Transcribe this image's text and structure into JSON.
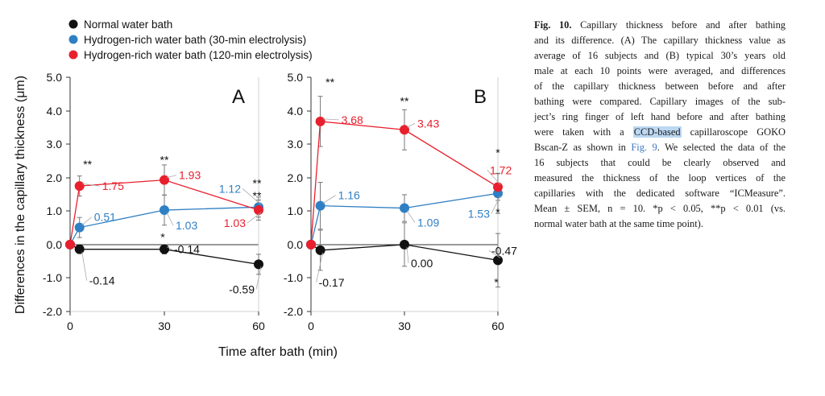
{
  "legend": {
    "items": [
      {
        "label": "Normal water bath",
        "color": "#111111"
      },
      {
        "label": "Hydrogen-rich water bath (30-min electrolysis)",
        "color": "#2f7fc4"
      },
      {
        "label": "Hydrogen-rich water bath (120-min electrolysis)",
        "color": "#e8202e"
      }
    ]
  },
  "chart_data": [
    {
      "type": "line",
      "panel_label": "A",
      "ylabel": "Differences in the capillary thickness (μm)",
      "xlabel": "Time after bath (min)",
      "ylim": [
        -2.0,
        5.0
      ],
      "xlim": [
        0,
        60
      ],
      "yticks": [
        "5.0",
        "4.0",
        "3.0",
        "2.0",
        "1.0",
        "0.0",
        "-1.0",
        "-2.0"
      ],
      "xticks": [
        "0",
        "30",
        "60"
      ],
      "grid": false,
      "series": [
        {
          "name": "Normal water bath",
          "color": "#111111",
          "points": [
            {
              "x": 0,
              "y": 0.0,
              "err": 0,
              "label": ""
            },
            {
              "x": 3,
              "y": -0.14,
              "err": 0.12,
              "label": "-0.14"
            },
            {
              "x": 30,
              "y": -0.14,
              "err": 0.14,
              "label": "-0.14",
              "sig": "*"
            },
            {
              "x": 60,
              "y": -0.59,
              "err": 0.3,
              "label": "-0.59"
            }
          ]
        },
        {
          "name": "Hydrogen-rich water bath (30-min electrolysis)",
          "color": "#2f7fc4",
          "points": [
            {
              "x": 0,
              "y": 0.0,
              "err": 0,
              "label": ""
            },
            {
              "x": 3,
              "y": 0.51,
              "err": 0.3,
              "label": "0.51"
            },
            {
              "x": 30,
              "y": 1.03,
              "err": 0.45,
              "label": "1.03"
            },
            {
              "x": 60,
              "y": 1.12,
              "err": 0.3,
              "label": "1.12",
              "sig": "**"
            }
          ]
        },
        {
          "name": "Hydrogen-rich water bath (120-min electrolysis)",
          "color": "#e8202e",
          "points": [
            {
              "x": 0,
              "y": 0.0,
              "err": 0,
              "label": ""
            },
            {
              "x": 3,
              "y": 1.75,
              "err": 0.3,
              "label": "1.75",
              "sig": "**"
            },
            {
              "x": 30,
              "y": 1.93,
              "err": 0.45,
              "label": "1.93",
              "sig": "**"
            },
            {
              "x": 60,
              "y": 1.03,
              "err": 0.3,
              "label": "1.03",
              "sig": "**"
            }
          ]
        }
      ]
    },
    {
      "type": "line",
      "panel_label": "B",
      "xlabel": "Time after bath (min)",
      "ylim": [
        -2.0,
        5.0
      ],
      "xlim": [
        0,
        60
      ],
      "yticks": [
        "5.0",
        "4.0",
        "3.0",
        "2.0",
        "1.0",
        "0.0",
        "-1.0",
        "-2.0"
      ],
      "xticks": [
        "0",
        "30",
        "60"
      ],
      "grid": false,
      "series": [
        {
          "name": "Normal water bath",
          "color": "#111111",
          "points": [
            {
              "x": 0,
              "y": 0.0,
              "err": 0,
              "label": ""
            },
            {
              "x": 3,
              "y": -0.17,
              "err": 0.6,
              "label": "-0.17"
            },
            {
              "x": 30,
              "y": 0.0,
              "err": 0.65,
              "label": "0.00"
            },
            {
              "x": 60,
              "y": -0.47,
              "err": 0.8,
              "label": "-0.47",
              "sig": "*"
            }
          ]
        },
        {
          "name": "Hydrogen-rich water bath (30-min electrolysis)",
          "color": "#2f7fc4",
          "points": [
            {
              "x": 0,
              "y": 0.0,
              "err": 0,
              "label": ""
            },
            {
              "x": 3,
              "y": 1.16,
              "err": 0.7,
              "label": "1.16"
            },
            {
              "x": 30,
              "y": 1.09,
              "err": 0.4,
              "label": "1.09"
            },
            {
              "x": 60,
              "y": 1.53,
              "err": 0.6,
              "label": "1.53",
              "sig": "*"
            }
          ]
        },
        {
          "name": "Hydrogen-rich water bath (120-min electrolysis)",
          "color": "#e8202e",
          "points": [
            {
              "x": 0,
              "y": 0.0,
              "err": 0,
              "label": ""
            },
            {
              "x": 3,
              "y": 3.68,
              "err": 0.75,
              "label": "3.68",
              "sig": "**"
            },
            {
              "x": 30,
              "y": 3.43,
              "err": 0.6,
              "label": "3.43",
              "sig": "**"
            },
            {
              "x": 60,
              "y": 1.72,
              "err": 0.4,
              "label": "1.72",
              "sig": "*"
            }
          ]
        }
      ]
    }
  ],
  "caption": {
    "fig_label": "Fig. 10.",
    "lines": [
      " Capillary thickness before and after bathing",
      "and its difference. (A) The capillary thickness value as",
      "average of 16 subjects and (B) typical 30’s years old",
      "male at each 10 points were averaged, and differences",
      "of the capillary thickness between before and after",
      "bathing were compared. Capillary images of the sub-",
      "ject’s ring finger of left hand before and after bathing",
      "Bscan-Z as shown in ",
      "16 subjects that could be clearly observed and",
      "measured the thickness of the loop vertices of the",
      "capillaries with the dedicated software “ICMeasure”.",
      "Mean ± SEM, n = 10. *p < 0.05, **p < 0.01 (vs.",
      "normal water bath at the same time point)."
    ],
    "line8_prefix": "were taken with a ",
    "highlight_text": "CCD-based",
    "line8_suffix": " capillaroscope GOKO",
    "fig_ref": "Fig. 9",
    "line9_suffix": ". We selected the data of the"
  }
}
